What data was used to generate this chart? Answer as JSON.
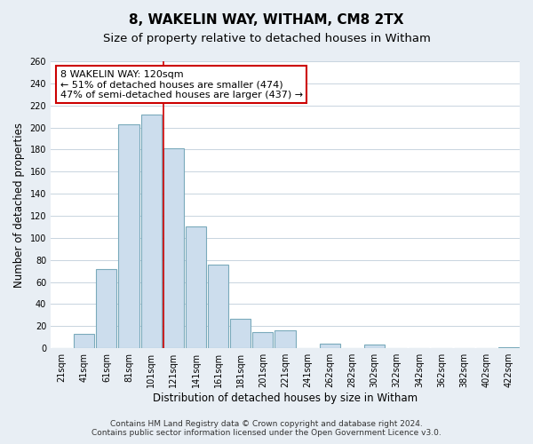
{
  "title": "8, WAKELIN WAY, WITHAM, CM8 2TX",
  "subtitle": "Size of property relative to detached houses in Witham",
  "xlabel": "Distribution of detached houses by size in Witham",
  "ylabel": "Number of detached properties",
  "bar_labels": [
    "21sqm",
    "41sqm",
    "61sqm",
    "81sqm",
    "101sqm",
    "121sqm",
    "141sqm",
    "161sqm",
    "181sqm",
    "201sqm",
    "221sqm",
    "241sqm",
    "262sqm",
    "282sqm",
    "302sqm",
    "322sqm",
    "342sqm",
    "362sqm",
    "382sqm",
    "402sqm",
    "422sqm"
  ],
  "bar_values": [
    0,
    13,
    72,
    203,
    212,
    181,
    110,
    76,
    27,
    15,
    16,
    0,
    4,
    0,
    3,
    0,
    0,
    0,
    0,
    0,
    1
  ],
  "bar_color": "#ccdded",
  "bar_edge_color": "#7aaabb",
  "vline_color": "#cc0000",
  "annotation_title": "8 WAKELIN WAY: 120sqm",
  "annotation_line1": "← 51% of detached houses are smaller (474)",
  "annotation_line2": "47% of semi-detached houses are larger (437) →",
  "annotation_box_color": "#ffffff",
  "annotation_box_edge": "#cc0000",
  "ylim": [
    0,
    260
  ],
  "yticks": [
    0,
    20,
    40,
    60,
    80,
    100,
    120,
    140,
    160,
    180,
    200,
    220,
    240,
    260
  ],
  "footer1": "Contains HM Land Registry data © Crown copyright and database right 2024.",
  "footer2": "Contains public sector information licensed under the Open Government Licence v3.0.",
  "bg_color": "#e8eef4",
  "plot_bg_color": "#ffffff",
  "grid_color": "#c8d4de",
  "title_fontsize": 11,
  "subtitle_fontsize": 9.5,
  "axis_label_fontsize": 8.5,
  "tick_fontsize": 7,
  "footer_fontsize": 6.5,
  "annotation_fontsize": 8
}
